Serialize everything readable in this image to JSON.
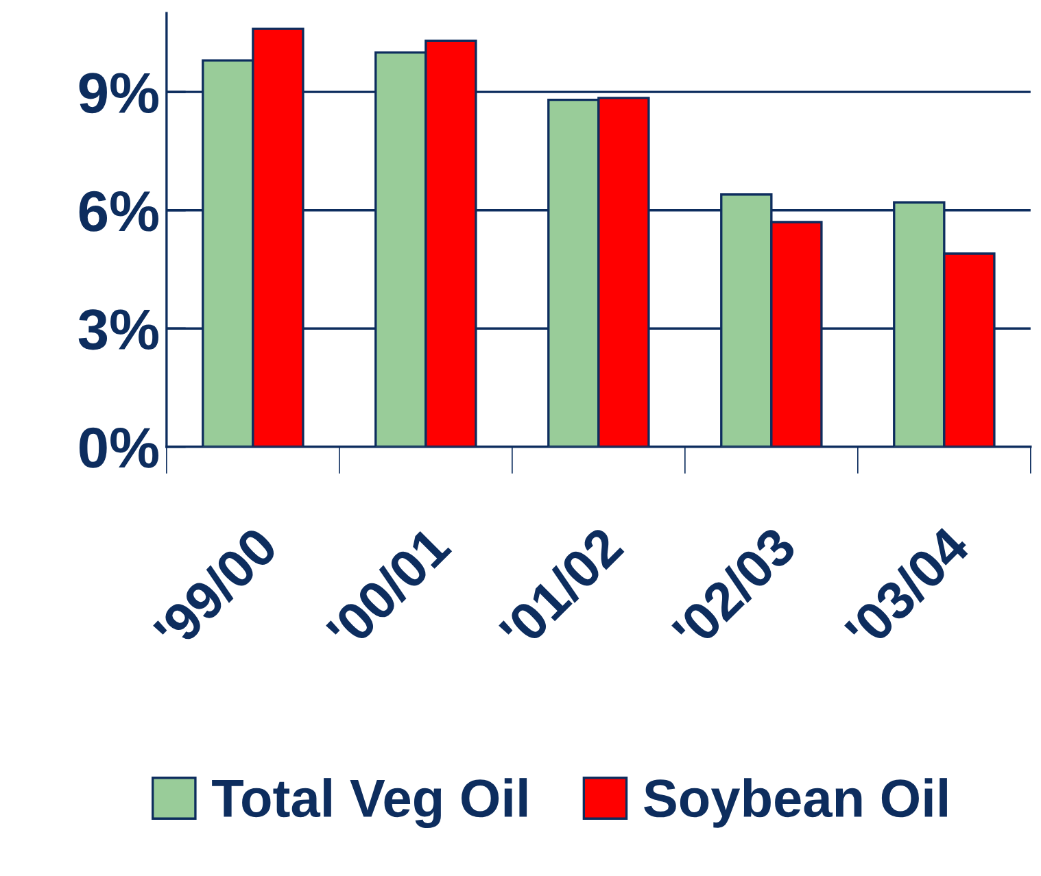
{
  "chart_data": {
    "type": "bar",
    "categories": [
      "'99/00",
      "'00/01",
      "'01/02",
      "'02/03",
      "'03/04"
    ],
    "series": [
      {
        "name": "Total Veg Oil",
        "color": "#99cc99",
        "values": [
          9.8,
          10.0,
          8.8,
          6.4,
          6.2
        ]
      },
      {
        "name": "Soybean Oil",
        "color": "#ff0000",
        "values": [
          10.6,
          10.3,
          8.85,
          5.7,
          4.9
        ]
      }
    ],
    "ylim": [
      0,
      11
    ],
    "yticks": [
      {
        "value": 0,
        "label": "0%"
      },
      {
        "value": 3,
        "label": "3%"
      },
      {
        "value": 6,
        "label": "6%"
      },
      {
        "value": 9,
        "label": "9%"
      }
    ],
    "grid": "y",
    "legend": "bottom"
  }
}
